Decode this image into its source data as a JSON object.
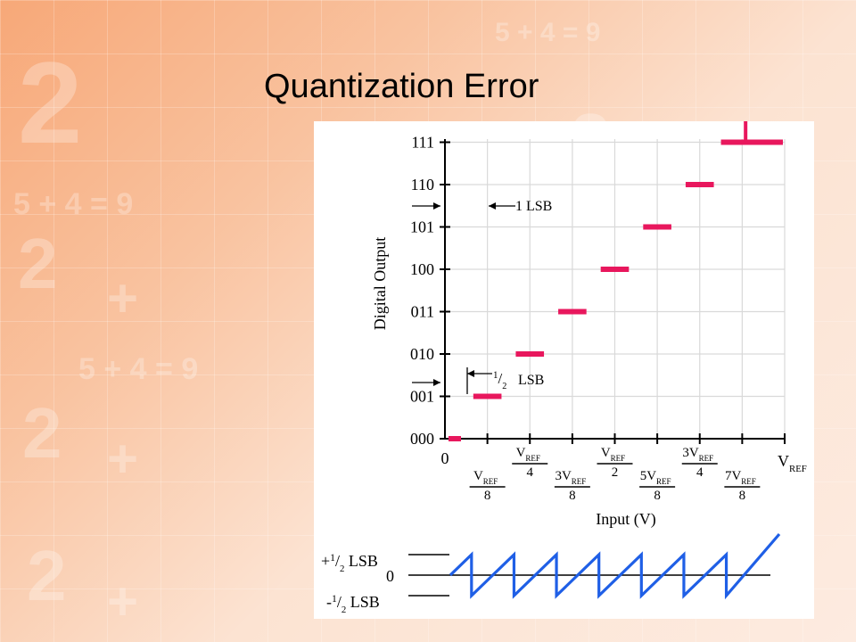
{
  "slide": {
    "title": "Quantization Error"
  },
  "background": {
    "deco": [
      "2",
      "5 + 4 = 9",
      "2",
      "+",
      "5 + 4 = 9",
      "2",
      "+",
      "2",
      "+",
      "5 + 4 = 9",
      "2",
      "+"
    ]
  },
  "chart_data": {
    "type": "line",
    "ylabel": "Digital Output",
    "xlabel": "Input (V)",
    "y_codes": [
      "000",
      "001",
      "010",
      "011",
      "100",
      "101",
      "110",
      "111"
    ],
    "x_origin_label": "0",
    "x_end_label": "V",
    "x_end_sub": "REF",
    "x_fraction_labels": [
      {
        "numer": "V",
        "sub": "REF",
        "denom": "8",
        "value": 0.125,
        "row": "lower"
      },
      {
        "numer": "V",
        "sub": "REF",
        "denom": "4",
        "value": 0.25,
        "row": "upper"
      },
      {
        "numer": "3V",
        "sub": "REF",
        "denom": "8",
        "value": 0.375,
        "row": "lower"
      },
      {
        "numer": "V",
        "sub": "REF",
        "denom": "2",
        "value": 0.5,
        "row": "upper"
      },
      {
        "numer": "5V",
        "sub": "REF",
        "denom": "8",
        "value": 0.625,
        "row": "lower"
      },
      {
        "numer": "3V",
        "sub": "REF",
        "denom": "4",
        "value": 0.75,
        "row": "upper"
      },
      {
        "numer": "7V",
        "sub": "REF",
        "denom": "8",
        "value": 0.875,
        "row": "lower"
      }
    ],
    "steps": [
      {
        "code": 0,
        "x_start": 0.0,
        "x_end": 0.0625
      },
      {
        "code": 1,
        "x_start": 0.0625,
        "x_end": 0.1875
      },
      {
        "code": 2,
        "x_start": 0.1875,
        "x_end": 0.3125
      },
      {
        "code": 3,
        "x_start": 0.3125,
        "x_end": 0.4375
      },
      {
        "code": 4,
        "x_start": 0.4375,
        "x_end": 0.5625
      },
      {
        "code": 5,
        "x_start": 0.5625,
        "x_end": 0.6875
      },
      {
        "code": 6,
        "x_start": 0.6875,
        "x_end": 0.8125
      },
      {
        "code": 7,
        "x_start": 0.8125,
        "x_end": 1.0
      }
    ],
    "annotation_1lsb": {
      "text": "1 LSB"
    },
    "annotation_half_lsb": {
      "numer": "1",
      "denom": "2",
      "unit": "LSB"
    },
    "error_plot": {
      "label_top_sign": "+",
      "label_top_num": "1",
      "label_top_den": "2",
      "label_top_unit": "LSB",
      "label_zero": "0",
      "label_bottom_sign": "-",
      "label_bottom_num": "1",
      "label_bottom_den": "2",
      "label_bottom_unit": "LSB",
      "segments": [
        {
          "x0": 0.0,
          "x1": 0.0625,
          "e0": 0.0,
          "e1": 0.5
        },
        {
          "x0": 0.0625,
          "x1": 0.1875,
          "e0": -0.5,
          "e1": 0.5
        },
        {
          "x0": 0.1875,
          "x1": 0.3125,
          "e0": -0.5,
          "e1": 0.5
        },
        {
          "x0": 0.3125,
          "x1": 0.4375,
          "e0": -0.5,
          "e1": 0.5
        },
        {
          "x0": 0.4375,
          "x1": 0.5625,
          "e0": -0.5,
          "e1": 0.5
        },
        {
          "x0": 0.5625,
          "x1": 0.6875,
          "e0": -0.5,
          "e1": 0.5
        },
        {
          "x0": 0.6875,
          "x1": 0.8125,
          "e0": -0.5,
          "e1": 0.5
        },
        {
          "x0": 0.8125,
          "x1": 1.0,
          "e0": -0.5,
          "e1": 1.0
        }
      ]
    },
    "colors": {
      "steps": "#e8175d",
      "error": "#1f5fe6",
      "axis": "#000000",
      "grid": "#d9d9d9"
    }
  }
}
